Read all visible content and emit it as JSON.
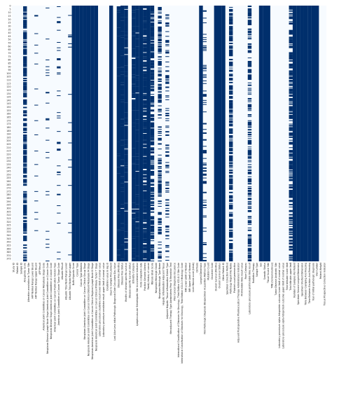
{
  "chart_data": {
    "type": "heatmap",
    "title": "",
    "xlabel": "",
    "ylabel": "",
    "colors": {
      "present": "#002f6c",
      "missing": "#f7fbff"
    },
    "row_labels": [
      "0",
      "5",
      "10",
      "15",
      "20",
      "25",
      "30",
      "35",
      "40",
      "45",
      "50",
      "55",
      "60",
      "65",
      "70",
      "75",
      "80",
      "85",
      "90",
      "95",
      "100",
      "105",
      "110",
      "115",
      "120",
      "125",
      "130",
      "135",
      "140",
      "145",
      "150",
      "155",
      "160",
      "165",
      "170",
      "175",
      "180",
      "185",
      "190",
      "195",
      "200",
      "205",
      "210",
      "215",
      "220",
      "225",
      "230",
      "235",
      "240",
      "245",
      "250",
      "255",
      "260",
      "265",
      "270",
      "275",
      "280",
      "285",
      "290",
      "295",
      "300",
      "305",
      "310",
      "315",
      "320",
      "325",
      "330",
      "335",
      "340",
      "345",
      "350",
      "355",
      "360",
      "365",
      "370",
      "375"
    ],
    "row_count": 379,
    "columns": [
      {
        "name": "Study ID",
        "fill": 0.0
      },
      {
        "name": "Patient ID",
        "fill": 0.0
      },
      {
        "name": "Sample ID",
        "fill": 0.0
      },
      {
        "name": "Aneuploidy Score",
        "fill": 0.55
      },
      {
        "name": "Alteration annotation to Tumor Site",
        "fill": 0.0
      },
      {
        "name": "AFP Normal Range Lower Bound",
        "fill": 0.0
      },
      {
        "name": "AFP Normal Range Upper Bound",
        "fill": 0.08
      },
      {
        "name": "AFP Result",
        "fill": 0.0
      },
      {
        "name": "American Joint Committee on Cancer Metastasis Stage Code",
        "fill": 0.0
      },
      {
        "name": "Neoplasm Disease Lymph Node Stage American Joint Committee on Cancer Code",
        "fill": 0.05
      },
      {
        "name": "Neoplasm Disease Stage American Joint Committee on Cancer Code",
        "fill": 0.0
      },
      {
        "name": "American Joint Committee on Cancer Publication Version Type",
        "fill": 0.0
      },
      {
        "name": "American Joint Committee on Cancer Tumor Stage Code",
        "fill": 0.08
      },
      {
        "name": "Albumin Result",
        "fill": 0.0
      },
      {
        "name": "Albumin Total Norm Range Lower",
        "fill": 0.0
      },
      {
        "name": "Albumin Total Norm Range Upper",
        "fill": 0.05
      },
      {
        "name": "Buffa Hypoxia Score",
        "fill": 1.0
      },
      {
        "name": "Cancer Type",
        "fill": 1.0
      },
      {
        "name": "Cancer Type Detailed",
        "fill": 1.0
      },
      {
        "name": "Neoplasm American Joint Committee on Cancer Clinical Group Stage",
        "fill": 1.0
      },
      {
        "name": "Neoplasm American Joint Committee on Cancer Clinical Distant Metastasis M Stage",
        "fill": 1.0
      },
      {
        "name": "Neoplasm American Joint Committee on Cancer Clinical Regional Lymph Node N Stage",
        "fill": 1.0
      },
      {
        "name": "Neoplasm American Joint Committee on Cancer Clinical Primary Tumor T Stage",
        "fill": 1.0
      },
      {
        "name": "Laboratory procedure creatinine result lower limit of normal value",
        "fill": 0.0
      },
      {
        "name": "Laboratory procedure creatinine result upper limit of normal value",
        "fill": 0.0
      },
      {
        "name": "Creatinine value in mg dl",
        "fill": 0.0
      },
      {
        "name": "Days to Sample Procurement",
        "fill": 1.0
      },
      {
        "name": "Last Alive Less Initial Pathologic Diagnosis Date Calculated Day Value",
        "fill": 0.0
      },
      {
        "name": "Disease Free (Months)",
        "fill": 0.92
      },
      {
        "name": "Disease Free Status",
        "fill": 0.88
      },
      {
        "name": "Months of disease-specific survival",
        "fill": 0.85
      },
      {
        "name": "Disease-specific Survival status",
        "fill": 0.0
      },
      {
        "name": "Ethnicity Category",
        "fill": 0.85
      },
      {
        "name": "Lymphovascular Extrahepatic Site Involvement Indicator",
        "fill": 0.9
      },
      {
        "name": "Form completion date",
        "fill": 1.0
      },
      {
        "name": "Fraction Genome Altered",
        "fill": 0.7
      },
      {
        "name": "Family history of cancer",
        "fill": 1.0
      },
      {
        "name": "Fibrosis Ishak Score",
        "fill": 0.55
      },
      {
        "name": "Neoplasm Histologic Grade",
        "fill": 0.0
      },
      {
        "name": "Neoplasm Histologic Type Name",
        "fill": 0.35
      },
      {
        "name": "Hepatic Inflammation Adjacent Tissue",
        "fill": 0.0
      },
      {
        "name": "Adjacent Hepatic Tissue Inflammation Extent Type",
        "fill": 0.2
      },
      {
        "name": "Neoadjuvant Therapy Type Administered Prior To Resection Text",
        "fill": 0.0
      },
      {
        "name": "Prior Cancer Diagnosis Occurence",
        "fill": 0.0
      },
      {
        "name": "International Classification of Diseases for Oncology, Third Edition ICD-O-3 Site Code",
        "fill": 0.0
      },
      {
        "name": "International Classification of Diseases for Oncology, Third Edition ICD-O-3 Histology Code",
        "fill": 0.0
      },
      {
        "name": "INR Lower Limit of Normal",
        "fill": 0.0
      },
      {
        "name": "INR Upper Limit of Normal",
        "fill": 0.0
      },
      {
        "name": "Liver fibrosis score (Ishak)",
        "fill": 0.0
      },
      {
        "name": "Cirrhosis",
        "fill": 0.0
      },
      {
        "name": "Longest Dimension",
        "fill": 1.0
      },
      {
        "name": "First Pathologic Diagnosis Biospecimen Acquisition Method Type",
        "fill": 0.2
      },
      {
        "name": "Mutation Count",
        "fill": 0.0
      },
      {
        "name": "Oncotree Code",
        "fill": 0.0
      },
      {
        "name": "Overall Survival (Months)",
        "fill": 1.0
      },
      {
        "name": "Overall Survival Status",
        "fill": 1.0
      },
      {
        "name": "Other Patient ID",
        "fill": 1.0
      },
      {
        "name": "Specimen Collection Method",
        "fill": 0.0
      },
      {
        "name": "Pathology Report File Name",
        "fill": 0.6
      },
      {
        "name": "Platelet count preresection",
        "fill": 0.0
      },
      {
        "name": "Adjuvant Postoperative Pharmaceutical Therapy Administered Indicator",
        "fill": 0.0
      },
      {
        "name": "Prothrombin time result value",
        "fill": 0.0
      },
      {
        "name": "Race Category",
        "fill": 0.0
      },
      {
        "name": "Laboratory procedure prothrombin time result",
        "fill": 0.45
      },
      {
        "name": "Radiation Therapy",
        "fill": 0.0
      },
      {
        "name": "Sample Type",
        "fill": 0.0
      },
      {
        "name": "Sex",
        "fill": 1.0
      },
      {
        "name": "Somatic Status",
        "fill": 1.0
      },
      {
        "name": "Tissue Source Site",
        "fill": 1.0
      },
      {
        "name": "TMB (nonsynonymous)",
        "fill": 0.0
      },
      {
        "name": "Tumor Disease Anatomic Site",
        "fill": 0.0
      },
      {
        "name": "Laboratory procedure alpha-fetoprotein outcome lower limit of normal value",
        "fill": 0.0
      },
      {
        "name": "Laboratory procedure alpha-fetoprotein outcome upper limit of normal value",
        "fill": 0.0
      },
      {
        "name": "Total bilirubin lower limit",
        "fill": 0.0
      },
      {
        "name": "Total bilirubin upper limit",
        "fill": 0.45
      },
      {
        "name": "Number of Samples Per Patient",
        "fill": 1.0
      },
      {
        "name": "Specimen Second Longest Dimension",
        "fill": 1.0
      },
      {
        "name": "Specimen Shortest Dimension",
        "fill": 1.0
      },
      {
        "name": "Time Between Clamping And Freezing",
        "fill": 1.0
      },
      {
        "name": "Time Between Excision And Freezing",
        "fill": 1.0
      },
      {
        "name": "Year of initial pathologic diagnosis",
        "fill": 1.0
      },
      {
        "name": "Vial number",
        "fill": 1.0
      },
      {
        "name": "Patient Weight",
        "fill": 0.0
      },
      {
        "name": "Tissue Prospective Collection Indicator",
        "fill": 0.0
      }
    ]
  }
}
